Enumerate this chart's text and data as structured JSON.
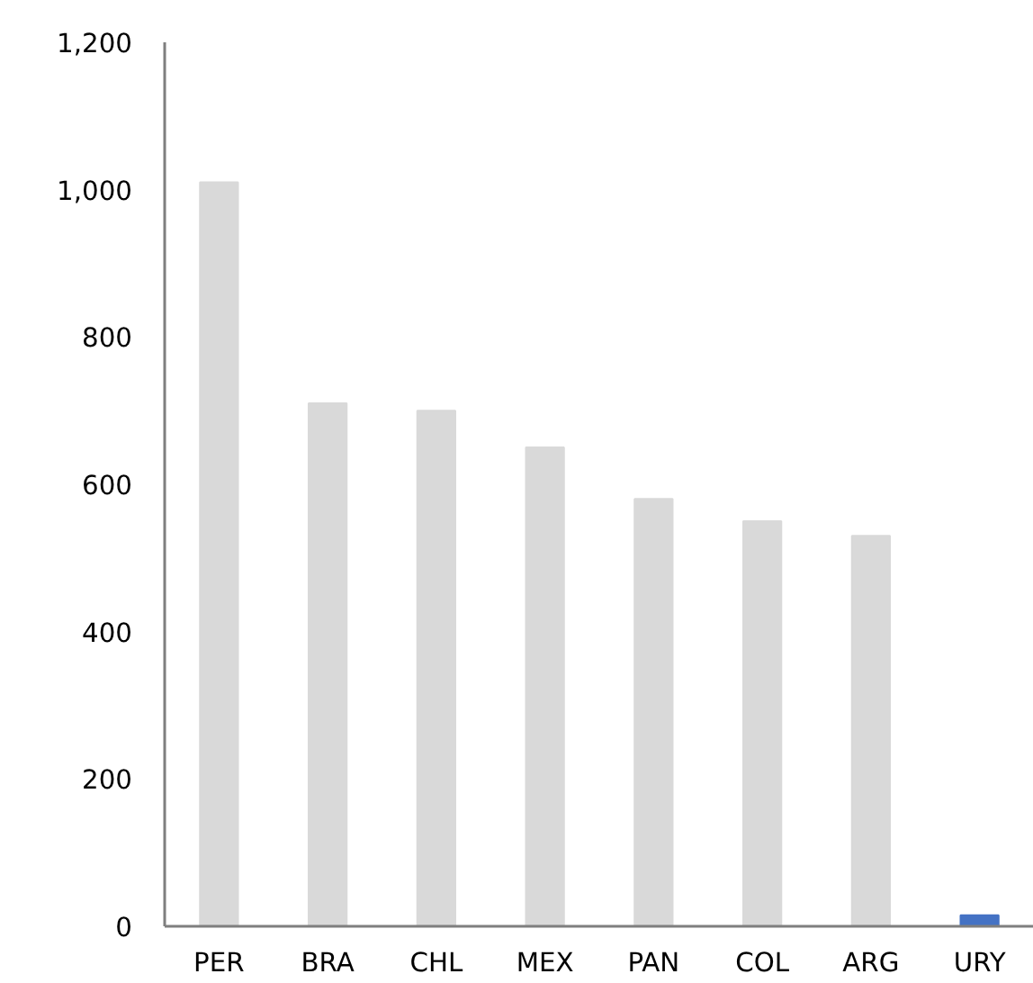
{
  "chart_data": {
    "type": "bar",
    "categories": [
      "PER",
      "BRA",
      "CHL",
      "MEX",
      "PAN",
      "COL",
      "ARG",
      "URY"
    ],
    "values": [
      1010,
      710,
      700,
      650,
      580,
      550,
      530,
      15
    ],
    "colors": [
      "#d9d9d9",
      "#d9d9d9",
      "#d9d9d9",
      "#d9d9d9",
      "#d9d9d9",
      "#d9d9d9",
      "#d9d9d9",
      "#4472c4"
    ],
    "ylim": [
      0,
      1200
    ],
    "yticks": [
      0,
      200,
      400,
      600,
      800,
      {
        "value": 1000,
        "label": "1,000"
      },
      {
        "value": 1200,
        "label": "1,200"
      }
    ],
    "grid": false
  }
}
